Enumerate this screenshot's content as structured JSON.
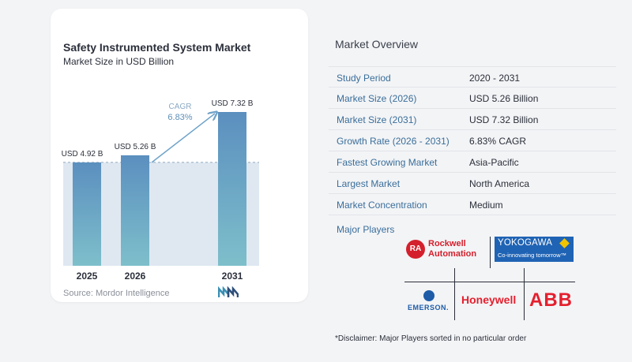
{
  "chart": {
    "title": "Safety Instrumented System Market",
    "subtitle": "Market Size in USD Billion",
    "source": "Source: Mordor Intelligence",
    "cagr_label": "CAGR",
    "cagr_value": "6.83%"
  },
  "chart_data": {
    "type": "bar",
    "categories": [
      "2025",
      "2026",
      "2031"
    ],
    "values": [
      4.92,
      5.26,
      7.32
    ],
    "data_labels": [
      "USD 4.92 B",
      "USD 5.26 B",
      "USD 7.32 B"
    ],
    "title": "Safety Instrumented System Market",
    "subtitle": "Market Size in USD Billion",
    "xlabel": "",
    "ylabel": "",
    "ylim": [
      0,
      7.32
    ],
    "grid": false,
    "annotations": [
      {
        "text": "CAGR 6.83%"
      }
    ],
    "colors": {
      "bar_top": "#5b8fbf",
      "bar_bottom": "#7ebfcb",
      "band": "#dfe8f1",
      "arrow": "#6fa3c9"
    }
  },
  "overview": {
    "title": "Market Overview",
    "rows": [
      {
        "label": "Study Period",
        "value": "2020 - 2031"
      },
      {
        "label": "Market Size (2026)",
        "value": "USD 5.26 Billion"
      },
      {
        "label": "Market Size (2031)",
        "value": "USD 7.32 Billion"
      },
      {
        "label": "Growth Rate (2026 - 2031)",
        "value": "6.83% CAGR"
      },
      {
        "label": "Fastest Growing Market",
        "value": "Asia-Pacific"
      },
      {
        "label": "Largest Market",
        "value": "North America"
      },
      {
        "label": "Market Concentration",
        "value": "Medium"
      }
    ],
    "players_title": "Major Players",
    "disclaimer": "*Disclaimer: Major Players sorted in no particular order"
  },
  "players": {
    "rockwell": {
      "badge": "RA",
      "line1": "Rockwell",
      "line2": "Automation"
    },
    "yokogawa": {
      "name": "YOKOGAWA",
      "tagline": "Co-innovating tomorrow™"
    },
    "emerson": {
      "name": "EMERSON."
    },
    "honeywell": {
      "name": "Honeywell"
    },
    "abb": {
      "name": "ABB"
    }
  },
  "colors": {
    "accent": "#3a6e9a",
    "brand_red": "#e4202e",
    "yokogawa_blue": "#1f63b4"
  }
}
